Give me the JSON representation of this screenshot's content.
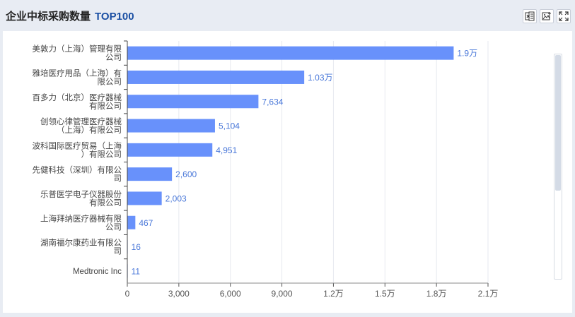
{
  "header": {
    "title": "企业中标采购数量",
    "title_accent": "TOP100",
    "icons": [
      "excel-export-icon",
      "image-export-icon",
      "fullscreen-icon"
    ]
  },
  "colors": {
    "bar": "#6891fb",
    "value_label": "#4a78d9",
    "accent": "#1a4fa3"
  },
  "chart_data": {
    "type": "bar",
    "orientation": "horizontal",
    "categories": [
      [
        "美敦力（上海）管理有限",
        "公司"
      ],
      [
        "雅培医疗用品（上海）有",
        "限公司"
      ],
      [
        "百多力（北京）医疗器械",
        "有限公司"
      ],
      [
        "创领心律管理医疗器械",
        "（上海）有限公司"
      ],
      [
        "波科国际医疗贸易（上海",
        "）有限公司"
      ],
      [
        "先健科技（深圳）有限公",
        "司"
      ],
      [
        "乐普医学电子仪器股份",
        "有限公司"
      ],
      [
        "上海拜纳医疗器械有限",
        "公司"
      ],
      [
        "湖南福尔康药业有限公",
        "司"
      ],
      [
        "Medtronic Inc"
      ]
    ],
    "values": [
      19000,
      10300,
      7634,
      5104,
      4951,
      2600,
      2003,
      467,
      16,
      11
    ],
    "value_labels": [
      "1.9万",
      "1.03万",
      "7,634",
      "5,104",
      "4,951",
      "2,600",
      "2,003",
      "467",
      "16",
      "11"
    ],
    "x_ticks": [
      0,
      3000,
      6000,
      9000,
      12000,
      15000,
      18000,
      21000
    ],
    "x_tick_labels": [
      "0",
      "3,000",
      "6,000",
      "9,000",
      "1.2万",
      "1.5万",
      "1.8万",
      "2.1万"
    ],
    "xlim": [
      0,
      21000
    ],
    "grid": true
  }
}
